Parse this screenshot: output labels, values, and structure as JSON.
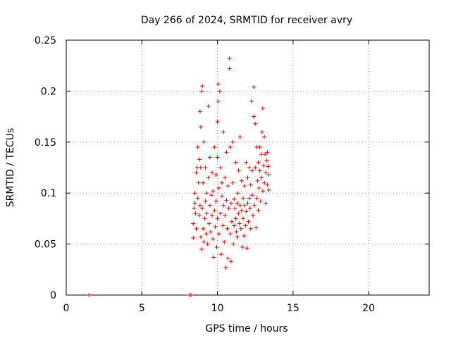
{
  "chart_data": {
    "type": "scatter",
    "title": "Day 266 of 2024, SRMTID for receiver avry",
    "xlabel": "GPS time / hours",
    "ylabel": "SRMTID / TECUs",
    "xlim": [
      0,
      24
    ],
    "ylim": [
      0,
      0.25
    ],
    "xticks": [
      0,
      5,
      10,
      15,
      20
    ],
    "yticks": [
      0,
      0.05,
      0.1,
      0.15,
      0.2,
      0.25
    ],
    "xtick_labels": [
      "0",
      "5",
      "10",
      "15",
      "20"
    ],
    "ytick_labels": [
      "0",
      "0.05",
      "0.1",
      "0.15",
      "0.2",
      "0.25"
    ],
    "grid": true,
    "marker": "+",
    "color": "#e00000",
    "series": [
      {
        "points": [
          [
            1.5,
            0.0
          ],
          [
            8.15,
            0.0
          ],
          [
            8.25,
            0.0
          ],
          [
            8.4,
            0.056
          ],
          [
            8.4,
            0.07
          ],
          [
            8.45,
            0.085
          ],
          [
            8.5,
            0.09
          ],
          [
            8.5,
            0.1
          ],
          [
            8.55,
            0.08
          ],
          [
            8.6,
            0.065
          ],
          [
            8.6,
            0.12
          ],
          [
            8.65,
            0.125
          ],
          [
            8.7,
            0.095
          ],
          [
            8.7,
            0.145
          ],
          [
            8.75,
            0.11
          ],
          [
            8.8,
            0.078
          ],
          [
            8.8,
            0.133
          ],
          [
            8.85,
            0.088
          ],
          [
            8.85,
            0.18
          ],
          [
            8.9,
            0.057
          ],
          [
            8.9,
            0.125
          ],
          [
            8.9,
            0.165
          ],
          [
            8.95,
            0.045
          ],
          [
            8.95,
            0.2
          ],
          [
            9.0,
            0.085
          ],
          [
            9.0,
            0.205
          ],
          [
            9.05,
            0.065
          ],
          [
            9.05,
            0.11
          ],
          [
            9.1,
            0.052
          ],
          [
            9.1,
            0.15
          ],
          [
            9.15,
            0.075
          ],
          [
            9.2,
            0.092
          ],
          [
            9.2,
            0.125
          ],
          [
            9.25,
            0.06
          ],
          [
            9.3,
            0.08
          ],
          [
            9.3,
            0.1
          ],
          [
            9.35,
            0.05
          ],
          [
            9.4,
            0.115
          ],
          [
            9.4,
            0.185
          ],
          [
            9.45,
            0.07
          ],
          [
            9.5,
            0.088
          ],
          [
            9.5,
            0.135
          ],
          [
            9.55,
            0.062
          ],
          [
            9.6,
            0.098
          ],
          [
            9.65,
            0.078
          ],
          [
            9.65,
            0.12
          ],
          [
            9.7,
            0.055
          ],
          [
            9.7,
            0.102
          ],
          [
            9.75,
            0.037
          ],
          [
            9.8,
            0.083
          ],
          [
            9.8,
            0.145
          ],
          [
            9.85,
            0.067
          ],
          [
            9.9,
            0.092
          ],
          [
            9.9,
            0.118
          ],
          [
            9.95,
            0.047
          ],
          [
            10.0,
            0.075
          ],
          [
            10.0,
            0.135
          ],
          [
            10.0,
            0.17
          ],
          [
            10.05,
            0.207
          ],
          [
            10.05,
            0.19
          ],
          [
            10.1,
            0.06
          ],
          [
            10.1,
            0.105
          ],
          [
            10.15,
            0.2
          ],
          [
            10.2,
            0.08
          ],
          [
            10.2,
            0.125
          ],
          [
            10.25,
            0.04
          ],
          [
            10.3,
            0.097
          ],
          [
            10.3,
            0.11
          ],
          [
            10.35,
            0.068
          ],
          [
            10.4,
            0.088
          ],
          [
            10.4,
            0.16
          ],
          [
            10.45,
            0.052
          ],
          [
            10.5,
            0.115
          ],
          [
            10.5,
            0.078
          ],
          [
            10.55,
            0.027
          ],
          [
            10.6,
            0.093
          ],
          [
            10.6,
            0.14
          ],
          [
            10.65,
            0.065
          ],
          [
            10.7,
            0.036
          ],
          [
            10.7,
            0.107
          ],
          [
            10.75,
            0.085
          ],
          [
            10.8,
            0.232
          ],
          [
            10.8,
            0.222
          ],
          [
            10.85,
            0.145
          ],
          [
            10.85,
            0.06
          ],
          [
            10.9,
            0.033
          ],
          [
            10.9,
            0.09
          ],
          [
            10.95,
            0.072
          ],
          [
            11.0,
            0.11
          ],
          [
            11.0,
            0.15
          ],
          [
            11.05,
            0.05
          ],
          [
            11.1,
            0.068
          ],
          [
            11.1,
            0.094
          ],
          [
            11.15,
            0.085
          ],
          [
            11.2,
            0.13
          ],
          [
            11.2,
            0.075
          ],
          [
            11.25,
            0.062
          ],
          [
            11.3,
            0.09
          ],
          [
            11.3,
            0.057
          ],
          [
            11.35,
            0.1
          ],
          [
            11.4,
            0.08
          ],
          [
            11.4,
            0.122
          ],
          [
            11.45,
            0.07
          ],
          [
            11.5,
            0.155
          ],
          [
            11.5,
            0.088
          ],
          [
            11.55,
            0.065
          ],
          [
            11.6,
            0.083
          ],
          [
            11.6,
            0.112
          ],
          [
            11.65,
            0.047
          ],
          [
            11.7,
            0.095
          ],
          [
            11.7,
            0.075
          ],
          [
            11.75,
            0.058
          ],
          [
            11.8,
            0.088
          ],
          [
            11.8,
            0.107
          ],
          [
            11.85,
            0.068
          ],
          [
            11.9,
            0.13
          ],
          [
            11.9,
            0.082
          ],
          [
            11.95,
            0.046
          ],
          [
            12.0,
            0.09
          ],
          [
            12.0,
            0.115
          ],
          [
            12.05,
            0.072
          ],
          [
            12.1,
            0.125
          ],
          [
            12.1,
            0.095
          ],
          [
            12.15,
            0.085
          ],
          [
            12.2,
            0.065
          ],
          [
            12.2,
            0.108
          ],
          [
            12.25,
            0.19
          ],
          [
            12.3,
            0.098
          ],
          [
            12.3,
            0.122
          ],
          [
            12.35,
            0.078
          ],
          [
            12.4,
            0.204
          ],
          [
            12.4,
            0.175
          ],
          [
            12.45,
            0.088
          ],
          [
            12.5,
            0.125
          ],
          [
            12.5,
            0.168
          ],
          [
            12.55,
            0.066
          ],
          [
            12.6,
            0.095
          ],
          [
            12.6,
            0.145
          ],
          [
            12.65,
            0.112
          ],
          [
            12.7,
            0.083
          ],
          [
            12.7,
            0.13
          ],
          [
            12.75,
            0.105
          ],
          [
            12.8,
            0.145
          ],
          [
            12.8,
            0.122
          ],
          [
            12.85,
            0.092
          ],
          [
            12.9,
            0.138
          ],
          [
            12.9,
            0.115
          ],
          [
            12.95,
            0.16
          ],
          [
            13.0,
            0.183
          ],
          [
            13.0,
            0.102
          ],
          [
            13.05,
            0.127
          ],
          [
            13.1,
            0.155
          ],
          [
            13.1,
            0.11
          ],
          [
            13.15,
            0.138
          ],
          [
            13.2,
            0.12
          ],
          [
            13.2,
            0.09
          ],
          [
            13.25,
            0.132
          ],
          [
            13.3,
            0.108
          ],
          [
            13.3,
            0.14
          ],
          [
            13.35,
            0.126
          ],
          [
            13.4,
            0.118
          ],
          [
            13.4,
            0.103
          ]
        ]
      }
    ]
  }
}
